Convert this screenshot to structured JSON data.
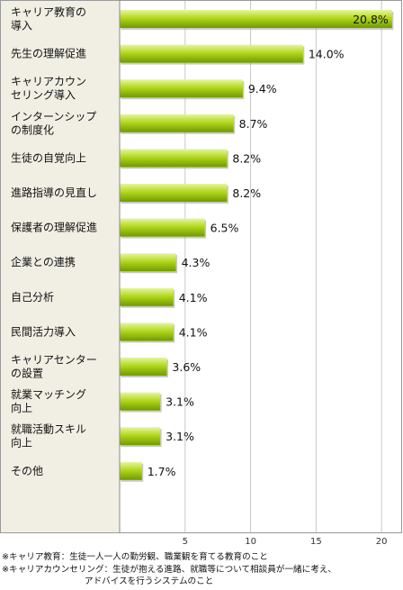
{
  "chart_data": {
    "type": "bar",
    "orientation": "horizontal",
    "title": "",
    "xlabel": "",
    "ylabel": "",
    "categories": [
      [
        "キャリア教育の",
        "導入"
      ],
      [
        "先生の理解促進"
      ],
      [
        "キャリアカウン",
        "セリング導入"
      ],
      [
        "インターンシップ",
        "の制度化"
      ],
      [
        "生徒の自覚向上"
      ],
      [
        "進路指導の見直し"
      ],
      [
        "保護者の理解促進"
      ],
      [
        "企業との連携"
      ],
      [
        "自己分析"
      ],
      [
        "民間活力導入"
      ],
      [
        "キャリアセンター",
        "の設置"
      ],
      [
        "就業マッチング",
        "向上"
      ],
      [
        "就職活動スキル",
        "向上"
      ],
      [
        "その他"
      ]
    ],
    "values": [
      20.8,
      14.0,
      9.4,
      8.7,
      8.2,
      8.2,
      6.5,
      4.3,
      4.1,
      4.1,
      3.6,
      3.1,
      3.1,
      1.7
    ],
    "value_labels": [
      "20.8%",
      "14.0%",
      "9.4%",
      "8.7%",
      "8.2%",
      "8.2%",
      "6.5%",
      "4.3%",
      "4.1%",
      "4.1%",
      "3.6%",
      "3.1%",
      "3.1%",
      "1.7%"
    ],
    "xlim": [
      0,
      21.5
    ],
    "xticks": [
      5,
      10,
      15,
      20
    ],
    "grid": "vertical",
    "colors": {
      "bar_light": "#e6f79a",
      "bar_main": "#b2d81e",
      "bar_dark": "#6f9a00",
      "label_panel": "#f1efe4"
    }
  },
  "notes": {
    "line1": "※キャリア教育：生徒一人一人の勤労観、職業観を育てる教育のこと",
    "line2": "※キャリアカウンセリング：生徒が抱える進路、就職等について相談員が一緒に考え、",
    "line3": "アドバイスを行うシステムのこと"
  }
}
